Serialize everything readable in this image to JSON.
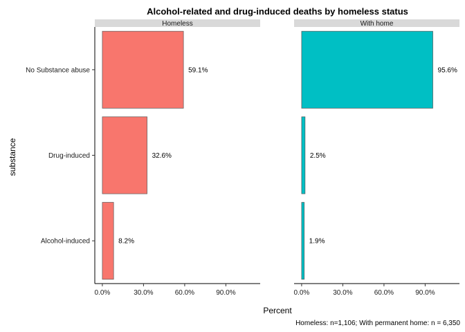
{
  "chart_data": {
    "type": "bar",
    "orientation": "horizontal",
    "title": "Alcohol-related and drug-induced deaths by homeless status",
    "xlabel": "Percent",
    "ylabel": "substance",
    "caption": "Homeless: n=1,106; With permanent home: n = 6,350",
    "categories": [
      "No Substance abuse",
      "Drug-induced",
      "Alcohol-induced"
    ],
    "x_ticks": [
      "0.0%",
      "30.0%",
      "60.0%",
      "90.0%"
    ],
    "x_tick_values": [
      0,
      30,
      60,
      90
    ],
    "xlim": [
      -5.5,
      115
    ],
    "grid": false,
    "legend": "none",
    "panels": [
      {
        "name": "Homeless",
        "color": "#F8766D",
        "values": [
          59.1,
          32.6,
          8.2
        ],
        "labels": [
          "59.1%",
          "32.6%",
          "8.2%"
        ]
      },
      {
        "name": "With home",
        "color": "#00BFC4",
        "values": [
          95.6,
          2.5,
          1.9
        ],
        "labels": [
          "95.6%",
          "2.5%",
          "1.9%"
        ]
      }
    ]
  }
}
